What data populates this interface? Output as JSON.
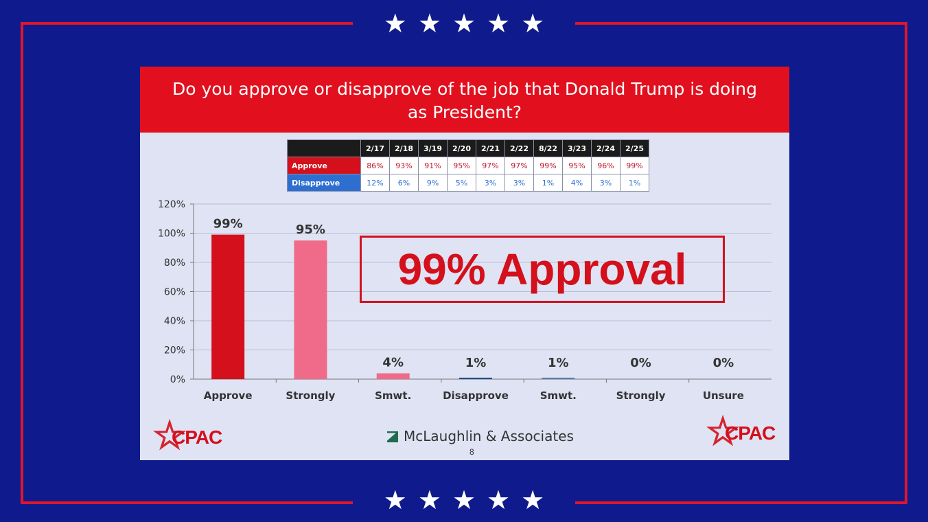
{
  "slide": {
    "title": "Do you approve or disapprove of the job that Donald Trump is doing as President?",
    "callout": "99% Approval",
    "brand": "McLaughlin & Associates",
    "page_number": "8",
    "logo_text": "CPAC"
  },
  "colors": {
    "background": "#0f1b8c",
    "frame": "#e0162b",
    "banner": "#e2101e",
    "approve": "#d4101c",
    "strong_approve": "#f06b8a",
    "disapprove": "#2c6fd0"
  },
  "trend_table": {
    "headers": [
      "2/17",
      "2/18",
      "3/19",
      "2/20",
      "2/21",
      "2/22",
      "8/22",
      "3/23",
      "2/24",
      "2/25"
    ],
    "rows": [
      {
        "label": "Approve",
        "values": [
          "86%",
          "93%",
          "91%",
          "95%",
          "97%",
          "97%",
          "99%",
          "95%",
          "96%",
          "99%"
        ]
      },
      {
        "label": "Disapprove",
        "values": [
          "12%",
          "6%",
          "9%",
          "5%",
          "3%",
          "3%",
          "1%",
          "4%",
          "3%",
          "1%"
        ]
      }
    ]
  },
  "chart_data": {
    "type": "bar",
    "categories": [
      "Approve",
      "Strongly",
      "Smwt.",
      "Disapprove",
      "Smwt.",
      "Strongly",
      "Unsure"
    ],
    "values": [
      99,
      95,
      4,
      1,
      1,
      0,
      0
    ],
    "value_labels": [
      "99%",
      "95%",
      "4%",
      "1%",
      "1%",
      "0%",
      "0%"
    ],
    "bar_colors": [
      "#d4101c",
      "#f06b8a",
      "#f06b8a",
      "#1f4f8f",
      "#5a7fb5",
      "#5a7fb5",
      "#777777"
    ],
    "ylim": [
      0,
      120
    ],
    "yticks": [
      "0%",
      "20%",
      "40%",
      "60%",
      "80%",
      "100%",
      "120%"
    ],
    "grid": true,
    "title": "",
    "xlabel": "",
    "ylabel": ""
  }
}
